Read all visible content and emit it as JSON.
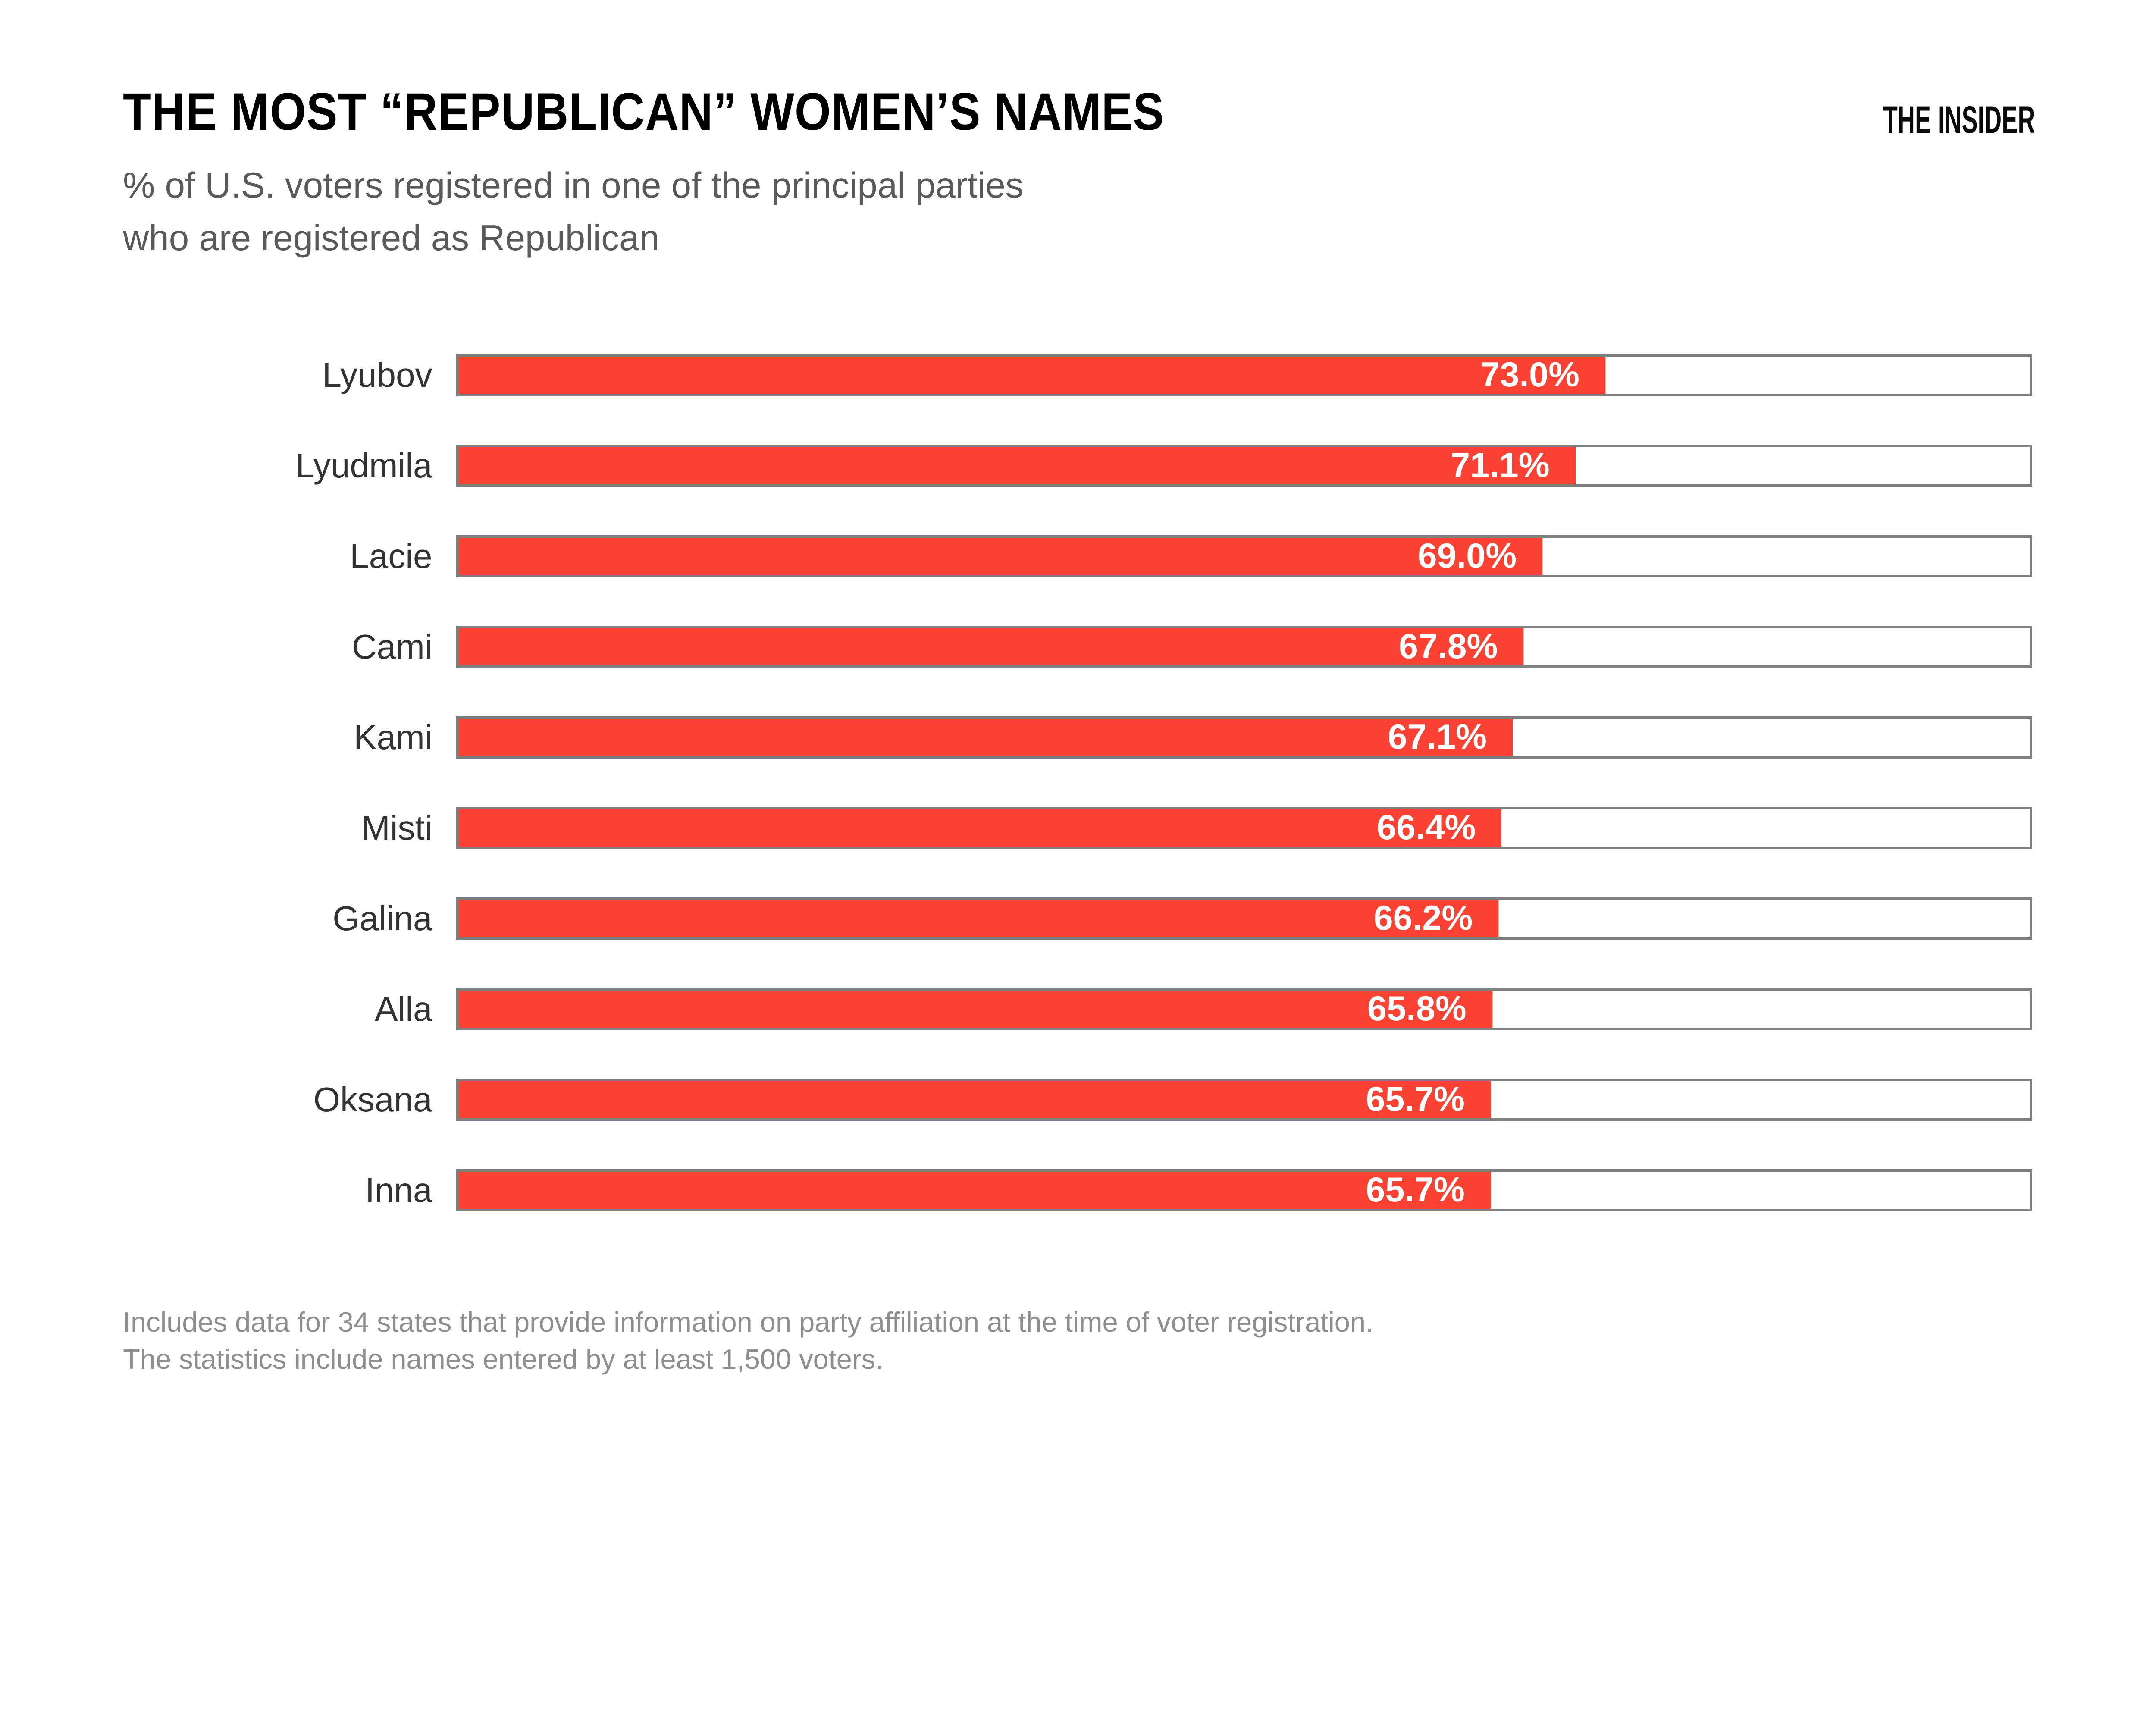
{
  "chart_data": {
    "type": "bar",
    "orientation": "horizontal",
    "title": "THE MOST “REPUBLICAN” WOMEN’S NAMES",
    "subtitle_lines": [
      "% of U.S. voters registered in one of the principal parties",
      "who are registered as Republican"
    ],
    "categories": [
      "Lyubov",
      "Lyudmila",
      "Lacie",
      "Cami",
      "Kami",
      "Misti",
      "Galina",
      "Alla",
      "Oksana",
      "Inna"
    ],
    "values": [
      73.0,
      71.1,
      69.0,
      67.8,
      67.1,
      66.4,
      66.2,
      65.8,
      65.7,
      65.7
    ],
    "value_labels": [
      "73.0%",
      "71.1%",
      "69.0%",
      "67.8%",
      "67.1%",
      "66.4%",
      "66.2%",
      "65.8%",
      "65.7%",
      "65.7%"
    ],
    "xlabel": "",
    "ylabel": "",
    "xlim": [
      0,
      100
    ],
    "grid": false,
    "legend": "none",
    "bar_color": "#fb4232",
    "track_border_color": "#7f7f7f",
    "track_fill_color": "#ffffff",
    "value_text_color": "#ffffff",
    "category_label_color": "#333333"
  },
  "brand": {
    "name": "THE INSIDER"
  },
  "footer": {
    "lines": [
      "Includes data for 34 states that provide information on party affiliation at the time of voter registration.",
      "The statistics include names entered by at least 1,500 voters."
    ]
  },
  "colors": {
    "background": "#ffffff",
    "title": "#000000",
    "subtitle": "#5a5a5a",
    "footer": "#8e8e8e"
  }
}
